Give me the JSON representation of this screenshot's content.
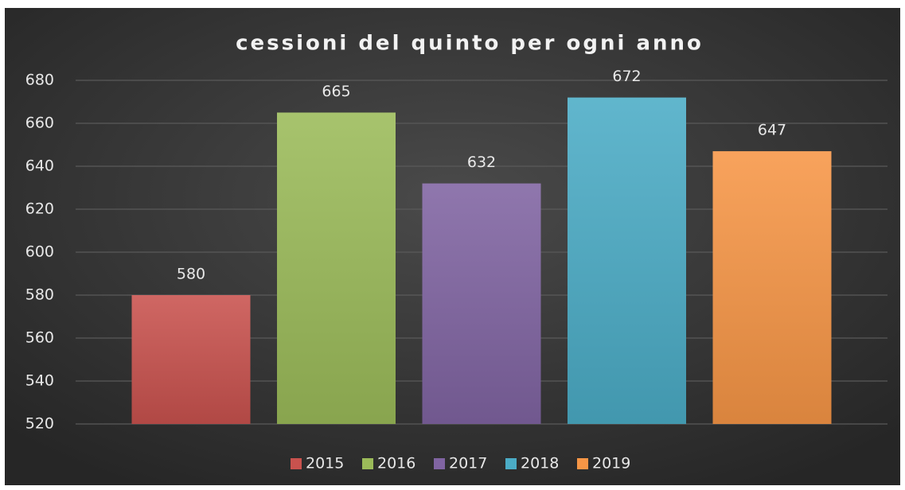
{
  "chart_data": {
    "type": "bar",
    "title": "cessioni del quinto per ogni anno",
    "categories": [
      null
    ],
    "series": [
      {
        "name": "2015",
        "color": "#c9524e",
        "values": [
          580
        ]
      },
      {
        "name": "2016",
        "color": "#9bbb59",
        "values": [
          665
        ]
      },
      {
        "name": "2017",
        "color": "#8064a2",
        "values": [
          632
        ]
      },
      {
        "name": "2018",
        "color": "#4bacc6",
        "values": [
          672
        ]
      },
      {
        "name": "2019",
        "color": "#f79646",
        "values": [
          647
        ]
      }
    ],
    "ylim": [
      520,
      680
    ],
    "yticks": [
      520,
      540,
      560,
      580,
      600,
      620,
      640,
      660,
      680
    ],
    "grid": true,
    "legend": "bottom"
  }
}
